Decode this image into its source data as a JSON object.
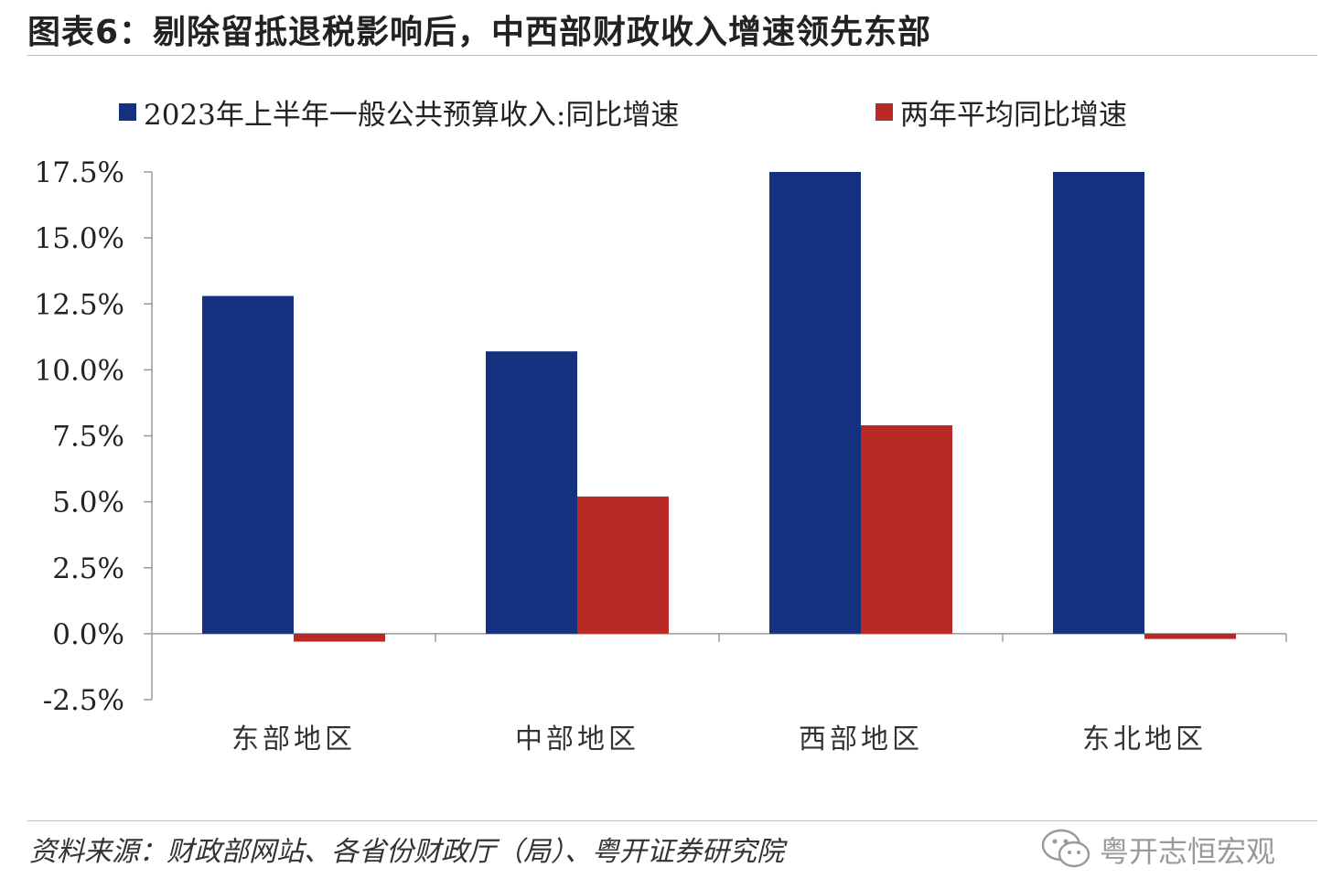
{
  "page_title": "图表6：剔除留抵退税影响后，中西部财政收入增速领先东部",
  "source": "资料来源：财政部网站、各省份财政厅（局）、粤开证券研究院",
  "brand": "粤开志恒宏观",
  "colors": {
    "series1": "#14317f",
    "series2": "#b92a26",
    "axis": "#9a9a9a"
  },
  "chart_data": {
    "type": "bar",
    "categories": [
      "东部地区",
      "中部地区",
      "西部地区",
      "东北地区"
    ],
    "series": [
      {
        "name": "2023年上半年一般公共预算收入:同比增速",
        "values": [
          12.8,
          10.7,
          17.5,
          17.5
        ]
      },
      {
        "name": "两年平均同比增速",
        "values": [
          -0.3,
          5.2,
          7.9,
          -0.2
        ]
      }
    ],
    "ylim": [
      -2.5,
      17.5
    ],
    "yticks": [
      17.5,
      15.0,
      12.5,
      10.0,
      7.5,
      5.0,
      2.5,
      0.0,
      -2.5
    ],
    "ytick_labels": [
      "17.5%",
      "15.0%",
      "12.5%",
      "10.0%",
      "7.5%",
      "5.0%",
      "2.5%",
      "0.0%",
      "-2.5%"
    ],
    "legend_position": "top",
    "grid": false
  }
}
